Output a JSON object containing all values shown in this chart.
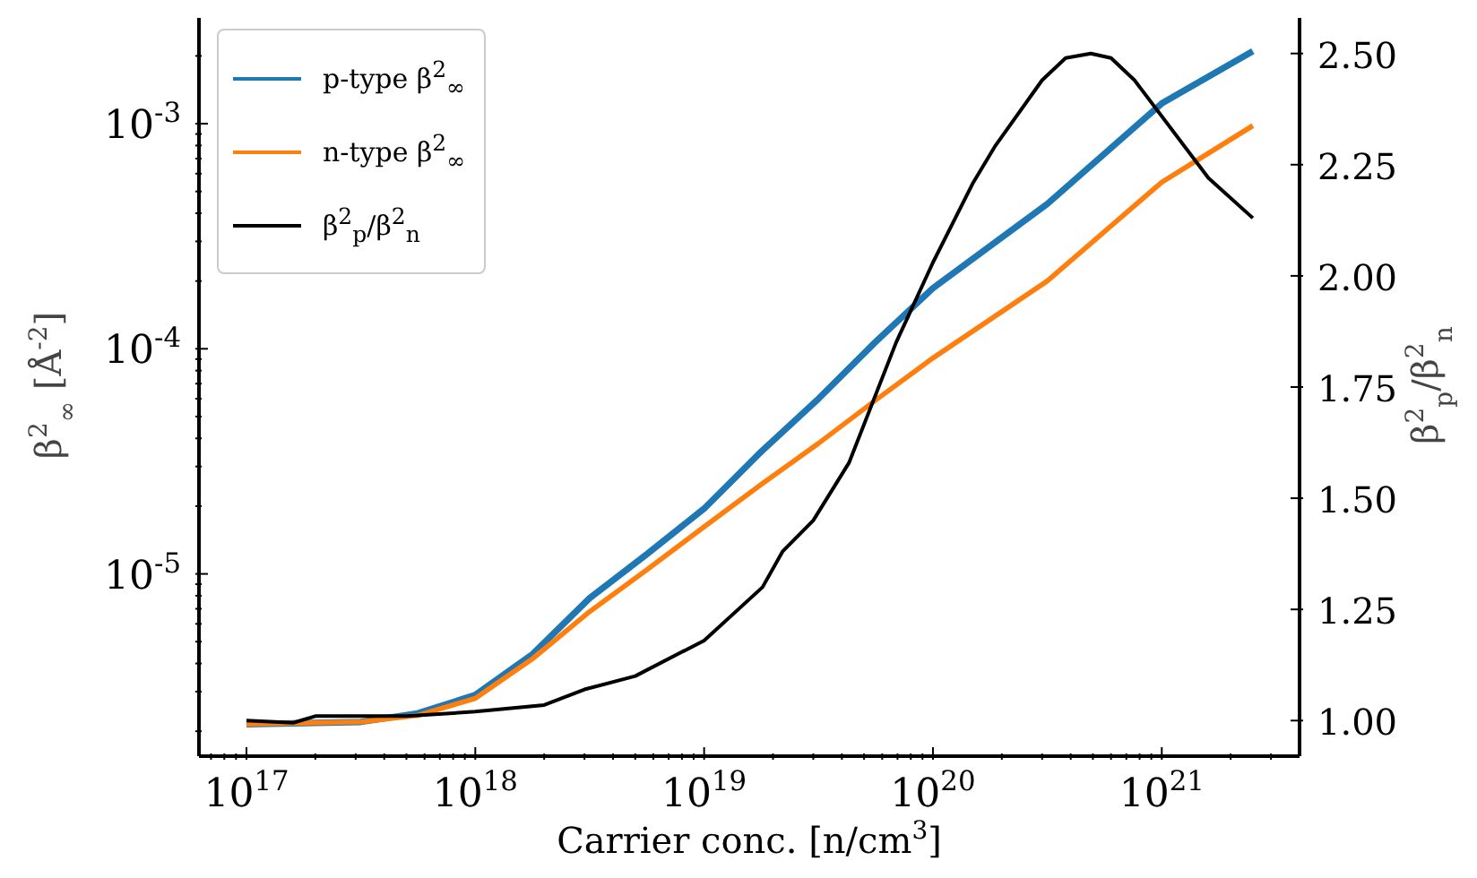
{
  "chart_data": {
    "type": "line",
    "xlabel": "Carrier conc. [n/cm$^{3}$]",
    "ylabel": "β$^{2}$$_{∞}$ [Å$^{-2}$]",
    "y2label": "β$^{2}$$_{p}$/β$^{2}$$_{n}$",
    "log": "xy",
    "grid": false,
    "legend": "top left",
    "marker": "none",
    "line_style": "solid",
    "xlim": [
      6.2e+16,
      4e+21
    ],
    "xticks": [
      {
        "value": 7e+16,
        "label": null
      },
      {
        "value": 8e+16,
        "label": null
      },
      {
        "value": 9e+16,
        "label": null
      },
      {
        "value": 1e+17,
        "label": "10$^{17}$"
      },
      {
        "value": 2e+17,
        "label": null
      },
      {
        "value": 3e+17,
        "label": null
      },
      {
        "value": 4e+17,
        "label": null
      },
      {
        "value": 5e+17,
        "label": null
      },
      {
        "value": 6e+17,
        "label": null
      },
      {
        "value": 7e+17,
        "label": null
      },
      {
        "value": 8e+17,
        "label": null
      },
      {
        "value": 9e+17,
        "label": null
      },
      {
        "value": 1e+18,
        "label": "10$^{18}$"
      },
      {
        "value": 2e+18,
        "label": null
      },
      {
        "value": 3e+18,
        "label": null
      },
      {
        "value": 4e+18,
        "label": null
      },
      {
        "value": 5e+18,
        "label": null
      },
      {
        "value": 6e+18,
        "label": null
      },
      {
        "value": 7e+18,
        "label": null
      },
      {
        "value": 8e+18,
        "label": null
      },
      {
        "value": 9e+18,
        "label": null
      },
      {
        "value": 1e+19,
        "label": "10$^{19}$"
      },
      {
        "value": 2e+19,
        "label": null
      },
      {
        "value": 3e+19,
        "label": null
      },
      {
        "value": 4e+19,
        "label": null
      },
      {
        "value": 5e+19,
        "label": null
      },
      {
        "value": 6e+19,
        "label": null
      },
      {
        "value": 7e+19,
        "label": null
      },
      {
        "value": 8e+19,
        "label": null
      },
      {
        "value": 9e+19,
        "label": null
      },
      {
        "value": 1e+20,
        "label": "10$^{20}$"
      },
      {
        "value": 2e+20,
        "label": null
      },
      {
        "value": 3e+20,
        "label": null
      },
      {
        "value": 4e+20,
        "label": null
      },
      {
        "value": 5e+20,
        "label": null
      },
      {
        "value": 6e+20,
        "label": null
      },
      {
        "value": 7e+20,
        "label": null
      },
      {
        "value": 8e+20,
        "label": null
      },
      {
        "value": 9e+20,
        "label": null
      },
      {
        "value": 1e+21,
        "label": "10$^{21}$"
      },
      {
        "value": 2e+21,
        "label": null
      },
      {
        "value": 3e+21,
        "label": null
      }
    ],
    "ylim": [
      1.55e-06,
      0.00295
    ],
    "yticks": [
      {
        "value": 2e-06,
        "label": null
      },
      {
        "value": 3e-06,
        "label": null
      },
      {
        "value": 4e-06,
        "label": null
      },
      {
        "value": 5e-06,
        "label": null
      },
      {
        "value": 6e-06,
        "label": null
      },
      {
        "value": 7e-06,
        "label": null
      },
      {
        "value": 8e-06,
        "label": null
      },
      {
        "value": 9e-06,
        "label": null
      },
      {
        "value": 1e-05,
        "label": "10$^{-5}$"
      },
      {
        "value": 2e-05,
        "label": null
      },
      {
        "value": 3e-05,
        "label": null
      },
      {
        "value": 4e-05,
        "label": null
      },
      {
        "value": 5e-05,
        "label": null
      },
      {
        "value": 6e-05,
        "label": null
      },
      {
        "value": 7e-05,
        "label": null
      },
      {
        "value": 8e-05,
        "label": null
      },
      {
        "value": 9e-05,
        "label": null
      },
      {
        "value": 0.0001,
        "label": "10$^{-4}$"
      },
      {
        "value": 0.0002,
        "label": null
      },
      {
        "value": 0.0003,
        "label": null
      },
      {
        "value": 0.0004,
        "label": null
      },
      {
        "value": 0.0005,
        "label": null
      },
      {
        "value": 0.0006,
        "label": null
      },
      {
        "value": 0.0007,
        "label": null
      },
      {
        "value": 0.0008,
        "label": null
      },
      {
        "value": 0.0009,
        "label": null
      },
      {
        "value": 0.001,
        "label": "10$^{-3}$"
      },
      {
        "value": 0.002,
        "label": null
      }
    ],
    "y2lim": [
      0.92,
      2.58
    ],
    "y2ticks": [
      {
        "value": 1,
        "label": "1.00"
      },
      {
        "value": 1.25,
        "label": "1.25"
      },
      {
        "value": 1.5,
        "label": "1.50"
      },
      {
        "value": 1.75,
        "label": "1.75"
      },
      {
        "value": 2,
        "label": "2.00"
      },
      {
        "value": 2.25,
        "label": "2.25"
      },
      {
        "value": 2.5,
        "label": "2.50"
      }
    ],
    "series": [
      {
        "name": "p-type β$^{2}$$_{∞}$",
        "color": "#1f77b4",
        "x": [
          1e+17,
          3.16e+17,
          5.6e+17,
          1e+18,
          1.78e+18,
          3.16e+18,
          5.6e+18,
          1e+19,
          1.78e+19,
          3.16e+19,
          5.6e+19,
          1e+20,
          3.16e+20,
          1e+21,
          2.5e+21
        ],
        "values": [
          2.15e-06,
          2.2e-06,
          2.4e-06,
          2.9e-06,
          4.4e-06,
          7.8e-06,
          1.22e-05,
          1.95e-05,
          3.5e-05,
          6e-05,
          0.000107,
          0.000186,
          0.00044,
          0.00123,
          0.0021
        ]
      },
      {
        "name": "n-type β$^{2}$$_{∞}$",
        "color": "#ff7f0e",
        "x": [
          1e+17,
          3.16e+17,
          5.6e+17,
          1e+18,
          1.78e+18,
          3.16e+18,
          5.6e+18,
          1e+19,
          1.78e+19,
          3.16e+19,
          5.6e+19,
          1e+20,
          3.16e+20,
          1e+21,
          2.5e+21
        ],
        "values": [
          2.15e-06,
          2.2e-06,
          2.35e-06,
          2.8e-06,
          4.2e-06,
          6.8e-06,
          1.04e-05,
          1.62e-05,
          2.5e-05,
          3.8e-05,
          5.9e-05,
          9.1e-05,
          0.0002,
          0.00055,
          0.00098
        ]
      },
      {
        "name": "β$^{2}$$_{p}$/β$^{2}$$_{n}$",
        "color": "#000000",
        "axis": "y2",
        "x": [
          1e+17,
          1.6e+17,
          2e+17,
          5e+17,
          1e+18,
          2e+18,
          3e+18,
          5e+18,
          1e+19,
          1.8e+19,
          2.2e+19,
          3e+19,
          4.3e+19,
          6.9e+19,
          1e+20,
          1.5e+20,
          1.86e+20,
          3e+20,
          3.8e+20,
          4.9e+20,
          6e+20,
          7.6e+20,
          1.6e+21,
          2.5e+21
        ],
        "values": [
          1.0,
          0.995,
          1.01,
          1.01,
          1.02,
          1.035,
          1.07,
          1.1,
          1.18,
          1.3,
          1.38,
          1.45,
          1.58,
          1.85,
          2.03,
          2.21,
          2.29,
          2.44,
          2.49,
          2.5,
          2.49,
          2.44,
          2.22,
          2.13
        ]
      }
    ]
  }
}
